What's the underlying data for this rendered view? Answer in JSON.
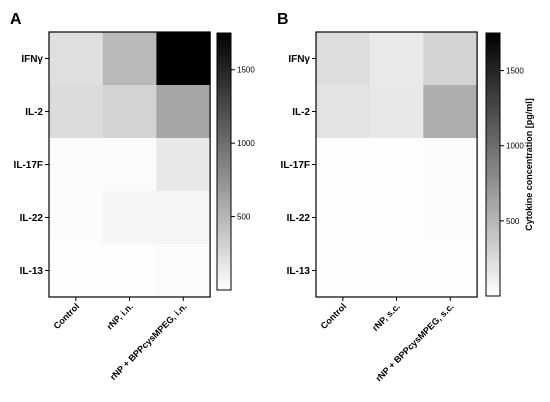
{
  "chart_data": [
    {
      "type": "heatmap",
      "panel": "A",
      "rows": [
        "IFNγ",
        "IL-2",
        "IL-17F",
        "IL-22",
        "IL-13"
      ],
      "columns": [
        "Control",
        "rNP, i.n.",
        "rNP + BPPcysMPEG, i.n."
      ],
      "values": [
        [
          220,
          480,
          1750
        ],
        [
          240,
          300,
          620
        ],
        [
          20,
          30,
          160
        ],
        [
          20,
          60,
          70
        ],
        [
          10,
          15,
          25
        ]
      ],
      "significance": [
        "****",
        "*",
        "**",
        "",
        ""
      ],
      "colorbar": {
        "min": 0,
        "max": 1750,
        "ticks": [
          500,
          1000,
          1500
        ],
        "title": ""
      }
    },
    {
      "type": "heatmap",
      "panel": "B",
      "rows": [
        "IFNγ",
        "IL-2",
        "IL-17F",
        "IL-22",
        "IL-13"
      ],
      "columns": [
        "Control",
        "rNP, s.c.",
        "rNP + BPPcysMPEG, s.c."
      ],
      "values": [
        [
          230,
          150,
          300
        ],
        [
          190,
          160,
          560
        ],
        [
          10,
          15,
          20
        ],
        [
          10,
          10,
          20
        ],
        [
          5,
          5,
          10
        ]
      ],
      "significance": [
        "",
        "**",
        "",
        "",
        ""
      ],
      "colorbar": {
        "min": 0,
        "max": 1750,
        "ticks": [
          500,
          1000,
          1500
        ],
        "title": "Cytokine concentration [pg/ml]"
      }
    }
  ]
}
